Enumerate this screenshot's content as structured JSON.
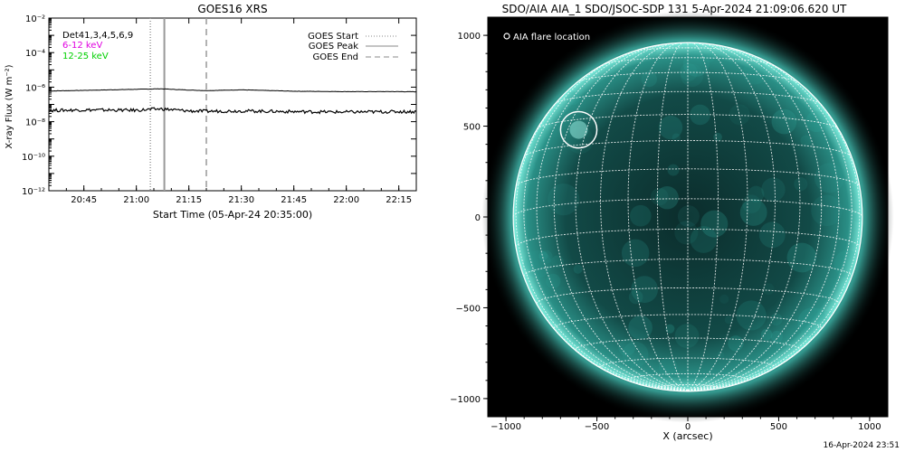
{
  "chart_data": [
    {
      "type": "line",
      "title": "GOES16 XRS",
      "xlabel": "Start Time (05-Apr-24 20:35:00)",
      "ylabel": "X-ray Flux (W m⁻²)",
      "y_scale": "log",
      "ylim": [
        1e-12,
        0.01
      ],
      "xlim": [
        "20:35",
        "22:20"
      ],
      "x_ticks": [
        "20:45",
        "21:00",
        "21:15",
        "21:30",
        "21:45",
        "22:00",
        "22:15"
      ],
      "y_ticks": [
        "10⁻¹²",
        "10⁻¹⁰",
        "10⁻⁸",
        "10⁻⁶",
        "10⁻⁴",
        "10⁻²"
      ],
      "det_label": "Det41,3,4,5,6,9",
      "series": [
        {
          "name": "6-12 keV",
          "color": "#e000e0",
          "x": [
            "20:35",
            "20:45",
            "21:00",
            "21:07",
            "21:15",
            "21:20",
            "21:30",
            "21:45",
            "22:00",
            "22:15",
            "22:20"
          ],
          "values": [
            6e-07,
            6.5e-07,
            7.5e-07,
            8e-07,
            6.8e-07,
            6.3e-07,
            7e-07,
            5.8e-07,
            5.5e-07,
            5.5e-07,
            5.4e-07
          ]
        },
        {
          "name": "12-25 keV",
          "color": "#00d000",
          "x": [
            "20:35",
            "20:45",
            "21:00",
            "21:07",
            "21:15",
            "21:20",
            "21:30",
            "21:45",
            "22:00",
            "22:15",
            "22:20"
          ],
          "values": [
            4.5e-08,
            4.8e-08,
            4.6e-08,
            5.5e-08,
            4.2e-08,
            4e-08,
            4.2e-08,
            3.8e-08,
            3.6e-08,
            3.8e-08,
            3.8e-08
          ]
        }
      ],
      "markers": [
        {
          "name": "GOES Start",
          "x": "21:04",
          "style": "dotted"
        },
        {
          "name": "GOES Peak",
          "x": "21:08",
          "style": "solid"
        },
        {
          "name": "GOES End",
          "x": "21:20",
          "style": "dashed"
        }
      ],
      "legend_placement": "top-right"
    },
    {
      "type": "scatter",
      "title": "SDO/AIA AIA_1 SDO/JSOC-SDP 131  5-Apr-2024 21:09:06.620 UT",
      "xlabel": "X (arcsec)",
      "ylabel": "",
      "xlim": [
        -1100,
        1100
      ],
      "ylim": [
        -1100,
        1100
      ],
      "x_ticks": [
        -1000,
        -500,
        0,
        500,
        1000
      ],
      "y_ticks": [
        -1000,
        -500,
        0,
        500,
        1000
      ],
      "solar_radius_arcsec": 960,
      "legend": "AIA flare location",
      "flare": {
        "x": -600,
        "y": 480,
        "r": 100
      },
      "colors": {
        "disk": "#0f3c3a",
        "limb": "#5fe0d0",
        "grid": "#ffffff"
      }
    }
  ],
  "footer": {
    "timestamp": "16-Apr-2024 23:51"
  }
}
